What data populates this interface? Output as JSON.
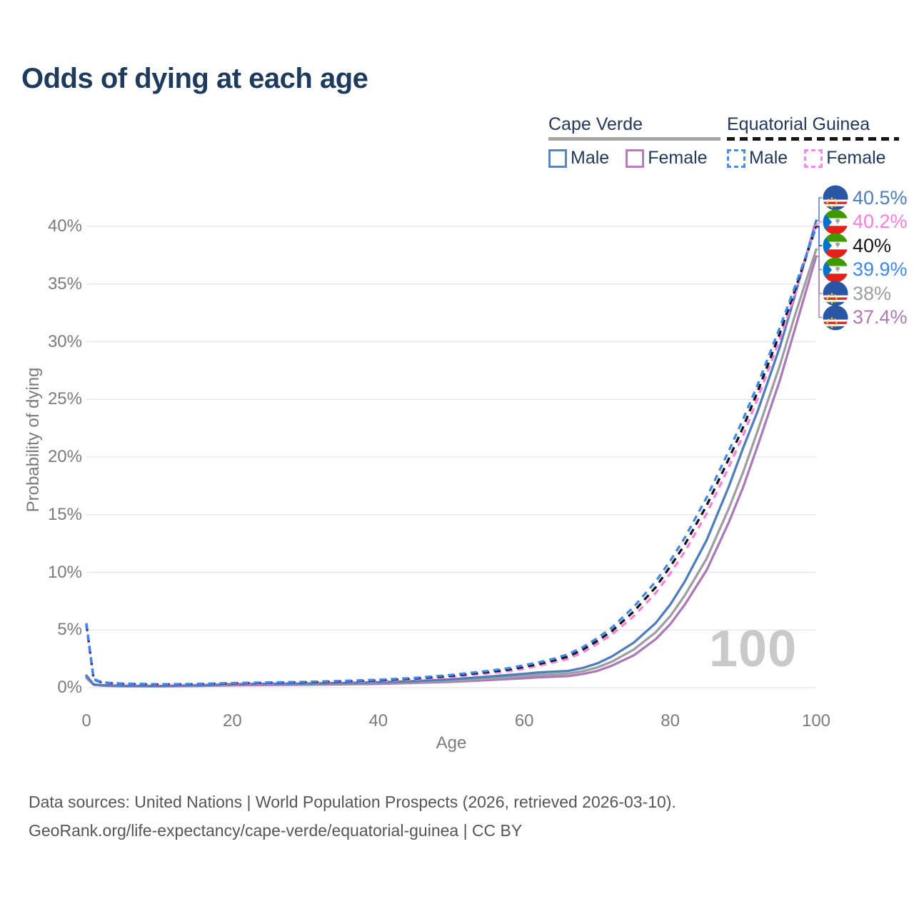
{
  "title": "Odds of dying at each age",
  "legend": {
    "groups": [
      {
        "id": "cape-verde",
        "label": "Cape Verde",
        "line_style": "solid",
        "line_color": "#a6a6a6",
        "items": [
          {
            "label": "Male",
            "color": "#4e7dbd",
            "style": "solid"
          },
          {
            "label": "Female",
            "color": "#bd7bbf",
            "style": "solid"
          }
        ]
      },
      {
        "id": "equatorial-guinea",
        "label": "Equatorial Guinea",
        "line_style": "dashed",
        "line_color": "#161616",
        "items": [
          {
            "label": "Male",
            "color": "#4a8cf2",
            "style": "dashed"
          },
          {
            "label": "Female",
            "color": "#ff86e8",
            "style": "dashed"
          }
        ]
      }
    ]
  },
  "watermark": "100",
  "footer": {
    "line1": "Data sources: United Nations | World Population Prospects (2026, retrieved 2026-03-10).",
    "line2": "GeoRank.org/life-expectancy/cape-verde/equatorial-guinea | CC BY"
  },
  "chart_data": {
    "type": "line",
    "title": "Odds of dying at each age",
    "xlabel": "Age",
    "ylabel": "Probability of dying",
    "xlim": [
      0,
      100
    ],
    "ylim": [
      0,
      40
    ],
    "x_ticks": [
      0,
      20,
      40,
      60,
      80,
      100
    ],
    "y_ticks": [
      0,
      5,
      10,
      15,
      20,
      25,
      30,
      35,
      40
    ],
    "y_tick_suffix": "%",
    "grid": true,
    "legend_position": "top-right",
    "ages": [
      0,
      1,
      2,
      3,
      5,
      10,
      15,
      20,
      25,
      30,
      35,
      40,
      45,
      50,
      55,
      58,
      60,
      62,
      64,
      66,
      68,
      70,
      72,
      75,
      78,
      80,
      82,
      85,
      88,
      90,
      92,
      95,
      97,
      100
    ],
    "series": [
      {
        "id": "cv_female",
        "name": "Cape Verde Female",
        "country": "Cape Verde",
        "sex": "Female",
        "color": "#ab79b8",
        "dash": false,
        "values": [
          0.85,
          0.24,
          0.18,
          0.15,
          0.12,
          0.11,
          0.14,
          0.2,
          0.22,
          0.25,
          0.28,
          0.33,
          0.41,
          0.51,
          0.65,
          0.75,
          0.82,
          0.9,
          0.95,
          1.0,
          1.18,
          1.45,
          1.9,
          2.8,
          4.2,
          5.5,
          7.2,
          10.2,
          14.3,
          17.4,
          21.0,
          26.6,
          30.9,
          37.4
        ]
      },
      {
        "id": "cv_both",
        "name": "Cape Verde Both sexes",
        "country": "Cape Verde",
        "sex": "Both",
        "color": "#9e9ea2",
        "dash": false,
        "values": [
          0.95,
          0.26,
          0.2,
          0.17,
          0.14,
          0.13,
          0.17,
          0.25,
          0.28,
          0.3,
          0.34,
          0.4,
          0.49,
          0.61,
          0.79,
          0.92,
          1.0,
          1.1,
          1.15,
          1.22,
          1.42,
          1.75,
          2.25,
          3.3,
          4.8,
          6.2,
          8.0,
          11.2,
          15.5,
          18.7,
          22.3,
          27.9,
          32.1,
          38.0
        ]
      },
      {
        "id": "cv_male",
        "name": "Cape Verde Male",
        "country": "Cape Verde",
        "sex": "Male",
        "color": "#4e7dbd",
        "dash": false,
        "values": [
          1.05,
          0.28,
          0.22,
          0.19,
          0.16,
          0.15,
          0.2,
          0.3,
          0.34,
          0.36,
          0.4,
          0.47,
          0.57,
          0.72,
          0.95,
          1.1,
          1.2,
          1.32,
          1.38,
          1.45,
          1.7,
          2.1,
          2.7,
          3.9,
          5.6,
          7.2,
          9.2,
          12.8,
          17.4,
          20.8,
          24.0,
          29.5,
          33.8,
          40.5
        ]
      },
      {
        "id": "eq_female",
        "name": "Equatorial Guinea Female",
        "country": "Equatorial Guinea",
        "sex": "Female",
        "color": "#ff7ce0",
        "dash": true,
        "values": [
          5.4,
          0.7,
          0.45,
          0.38,
          0.3,
          0.26,
          0.27,
          0.33,
          0.37,
          0.42,
          0.49,
          0.57,
          0.72,
          0.93,
          1.24,
          1.45,
          1.65,
          1.9,
          2.2,
          2.5,
          3.05,
          3.8,
          4.6,
          6.2,
          8.2,
          9.9,
          11.8,
          15.1,
          19.1,
          21.9,
          25.1,
          30.2,
          33.9,
          40.2
        ]
      },
      {
        "id": "eq_both",
        "name": "Equatorial Guinea Both sexes",
        "country": "Equatorial Guinea",
        "sex": "Both",
        "color": "#161616",
        "dash": true,
        "values": [
          5.5,
          0.72,
          0.48,
          0.4,
          0.33,
          0.28,
          0.3,
          0.37,
          0.42,
          0.46,
          0.54,
          0.63,
          0.79,
          1.02,
          1.35,
          1.58,
          1.8,
          2.05,
          2.35,
          2.7,
          3.3,
          4.05,
          4.9,
          6.6,
          8.7,
          10.5,
          12.4,
          15.8,
          19.8,
          22.6,
          25.7,
          30.7,
          34.3,
          40.0
        ]
      },
      {
        "id": "eq_male",
        "name": "Equatorial Guinea Male",
        "country": "Equatorial Guinea",
        "sex": "Male",
        "color": "#4187f2",
        "dash": true,
        "values": [
          5.6,
          0.75,
          0.5,
          0.42,
          0.35,
          0.3,
          0.32,
          0.4,
          0.45,
          0.5,
          0.58,
          0.68,
          0.85,
          1.1,
          1.45,
          1.7,
          1.95,
          2.2,
          2.5,
          2.9,
          3.5,
          4.3,
          5.2,
          7.0,
          9.2,
          11.0,
          13.0,
          16.5,
          20.5,
          23.3,
          26.3,
          31.2,
          34.6,
          39.9
        ]
      }
    ],
    "end_labels": [
      {
        "series": "cv_male",
        "text": "40.5%",
        "flag": "cape-verde"
      },
      {
        "series": "eq_female",
        "text": "40.2%",
        "flag": "equatorial-guinea"
      },
      {
        "series": "eq_both",
        "text": "40%",
        "flag": "equatorial-guinea"
      },
      {
        "series": "eq_male",
        "text": "39.9%",
        "flag": "equatorial-guinea"
      },
      {
        "series": "cv_both",
        "text": "38%",
        "flag": "cape-verde"
      },
      {
        "series": "cv_female",
        "text": "37.4%",
        "flag": "cape-verde"
      }
    ]
  }
}
